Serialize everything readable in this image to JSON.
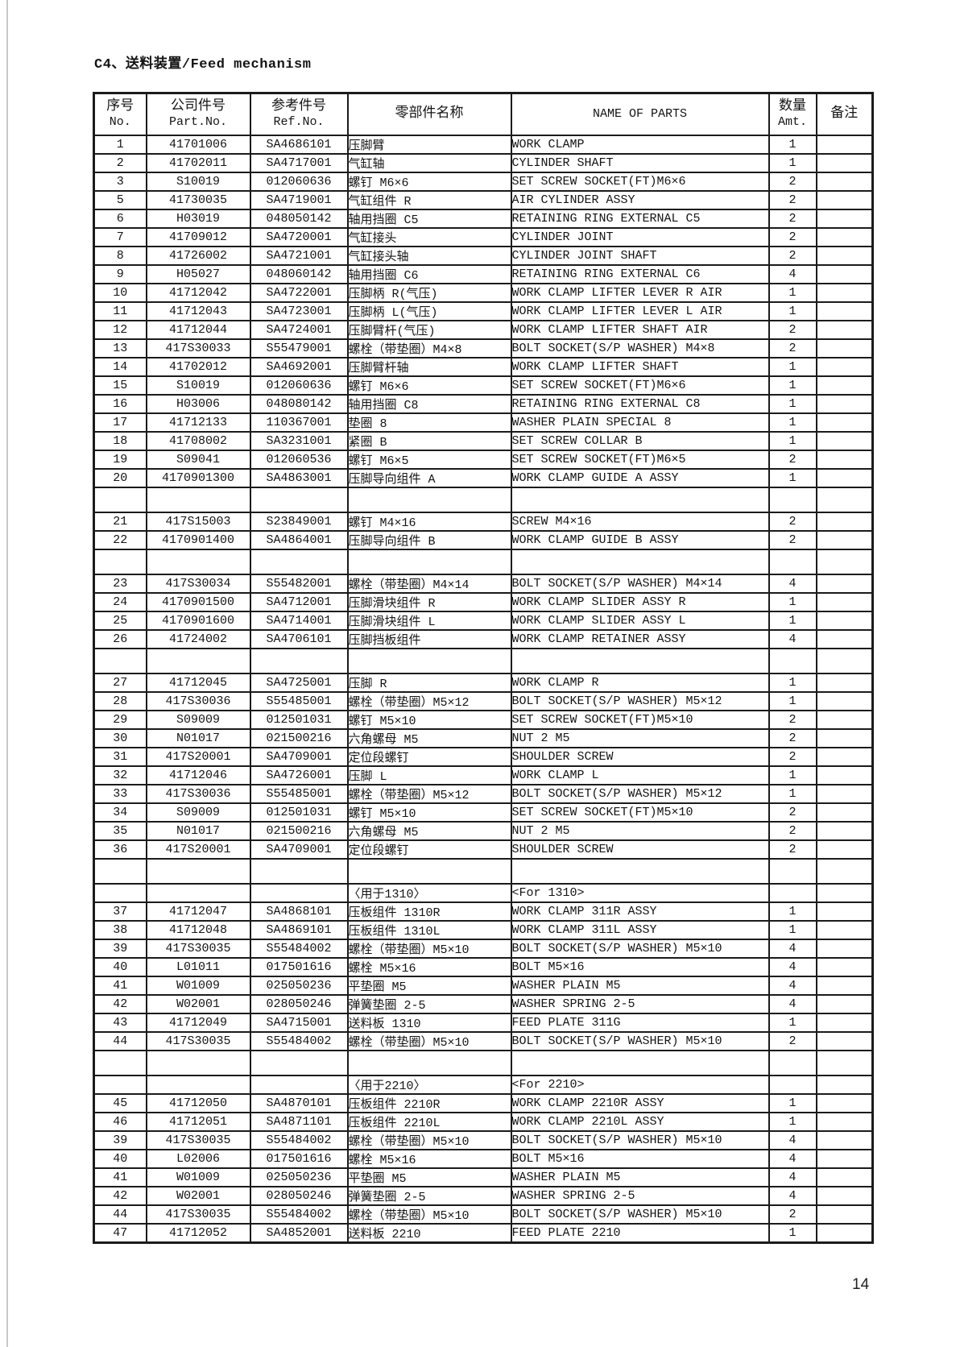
{
  "page": {
    "title": "C4、送料装置/Feed mechanism",
    "page_number": "14"
  },
  "table": {
    "columns": {
      "no": {
        "zh": "序号",
        "en": "No."
      },
      "part_no": {
        "zh": "公司件号",
        "en": "Part.No."
      },
      "ref_no": {
        "zh": "参考件号",
        "en": "Ref.No."
      },
      "name_zh": {
        "zh": "零部件名称"
      },
      "name_en": {
        "en": "NAME OF PARTS"
      },
      "amt": {
        "zh": "数量",
        "en": "Amt."
      },
      "remark": {
        "zh": "备注"
      }
    },
    "rows": [
      {
        "type": "item",
        "no": "1",
        "part": "41701006",
        "ref": "SA4686101",
        "zh": "压脚臂",
        "en": "WORK CLAMP",
        "amt": "1"
      },
      {
        "type": "item",
        "no": "2",
        "part": "41702011",
        "ref": "SA4717001",
        "zh": "气缸轴",
        "en": "CYLINDER SHAFT",
        "amt": "1"
      },
      {
        "type": "item",
        "no": "3",
        "part": "S10019",
        "ref": "012060636",
        "zh": "螺钉 M6×6",
        "en": "SET SCREW SOCKET(FT)M6×6",
        "amt": "2"
      },
      {
        "type": "item",
        "no": "5",
        "part": "41730035",
        "ref": "SA4719001",
        "zh": "气缸组件 R",
        "en": "AIR CYLINDER ASSY",
        "amt": "2"
      },
      {
        "type": "item",
        "no": "6",
        "part": "H03019",
        "ref": "048050142",
        "zh": "轴用挡圈 C5",
        "en": "RETAINING RING EXTERNAL C5",
        "amt": "2"
      },
      {
        "type": "item",
        "no": "7",
        "part": "41709012",
        "ref": "SA4720001",
        "zh": "气缸接头",
        "en": "CYLINDER JOINT",
        "amt": "2"
      },
      {
        "type": "item",
        "no": "8",
        "part": "41726002",
        "ref": "SA4721001",
        "zh": "气缸接头轴",
        "en": "CYLINDER JOINT SHAFT",
        "amt": "2"
      },
      {
        "type": "item",
        "no": "9",
        "part": "H05027",
        "ref": "048060142",
        "zh": "轴用挡圈 C6",
        "en": "RETAINING RING EXTERNAL C6",
        "amt": "4"
      },
      {
        "type": "item",
        "no": "10",
        "part": "41712042",
        "ref": "SA4722001",
        "zh": "压脚柄 R(气压)",
        "en": "WORK CLAMP LIFTER LEVER R AIR",
        "amt": "1"
      },
      {
        "type": "item",
        "no": "11",
        "part": "41712043",
        "ref": "SA4723001",
        "zh": "压脚柄 L(气压)",
        "en": "WORK CLAMP LIFTER LEVER L AIR",
        "amt": "1"
      },
      {
        "type": "item",
        "no": "12",
        "part": "41712044",
        "ref": "SA4724001",
        "zh": "压脚臂杆(气压)",
        "en": "WORK CLAMP LIFTER SHAFT AIR",
        "amt": "2"
      },
      {
        "type": "item",
        "no": "13",
        "part": "417S30033",
        "ref": "S55479001",
        "zh": "螺栓（带垫圈）M4×8",
        "en": "BOLT SOCKET(S/P WASHER) M4×8",
        "amt": "2"
      },
      {
        "type": "item",
        "no": "14",
        "part": "41702012",
        "ref": "SA4692001",
        "zh": "压脚臂杆轴",
        "en": "WORK CLAMP LIFTER SHAFT",
        "amt": "1"
      },
      {
        "type": "item",
        "no": "15",
        "part": "S10019",
        "ref": "012060636",
        "zh": "螺钉 M6×6",
        "en": "SET SCREW SOCKET(FT)M6×6",
        "amt": "1"
      },
      {
        "type": "item",
        "no": "16",
        "part": "H03006",
        "ref": "048080142",
        "zh": "轴用挡圈 C8",
        "en": "RETAINING RING EXTERNAL C8",
        "amt": "1"
      },
      {
        "type": "item",
        "no": "17",
        "part": "41712133",
        "ref": "110367001",
        "zh": "垫圈 8",
        "en": "WASHER PLAIN SPECIAL 8",
        "amt": "1"
      },
      {
        "type": "item",
        "no": "18",
        "part": "41708002",
        "ref": "SA3231001",
        "zh": "紧圈 B",
        "en": "SET SCREW COLLAR B",
        "amt": "1"
      },
      {
        "type": "item",
        "no": "19",
        "part": "S09041",
        "ref": "012060536",
        "zh": "螺钉 M6×5",
        "en": "SET SCREW SOCKET(FT)M6×5",
        "amt": "2"
      },
      {
        "type": "item",
        "no": "20",
        "part": "4170901300",
        "ref": "SA4863001",
        "zh": "压脚导向组件 A",
        "en": "WORK CLAMP GUIDE A ASSY",
        "amt": "1"
      },
      {
        "type": "blank"
      },
      {
        "type": "item",
        "no": "21",
        "part": "417S15003",
        "ref": "S23849001",
        "zh": "螺钉 M4×16",
        "en": "SCREW M4×16",
        "amt": "2"
      },
      {
        "type": "item",
        "no": "22",
        "part": "4170901400",
        "ref": "SA4864001",
        "zh": "压脚导向组件 B",
        "en": "WORK CLAMP GUIDE B ASSY",
        "amt": "2"
      },
      {
        "type": "blank"
      },
      {
        "type": "item",
        "no": "23",
        "part": "417S30034",
        "ref": "S55482001",
        "zh": "螺栓（带垫圈）M4×14",
        "en": "BOLT SOCKET(S/P WASHER) M4×14",
        "amt": "4"
      },
      {
        "type": "item",
        "no": "24",
        "part": "4170901500",
        "ref": "SA4712001",
        "zh": "压脚滑块组件 R",
        "en": "WORK CLAMP SLIDER ASSY R",
        "amt": "1"
      },
      {
        "type": "item",
        "no": "25",
        "part": "4170901600",
        "ref": "SA4714001",
        "zh": "压脚滑块组件 L",
        "en": "WORK CLAMP SLIDER ASSY L",
        "amt": "1"
      },
      {
        "type": "item",
        "no": "26",
        "part": "41724002",
        "ref": "SA4706101",
        "zh": "压脚挡板组件",
        "en": "WORK CLAMP RETAINER ASSY",
        "amt": "4"
      },
      {
        "type": "blank"
      },
      {
        "type": "item",
        "no": "27",
        "part": "41712045",
        "ref": "SA4725001",
        "zh": "压脚 R",
        "en": "WORK CLAMP R",
        "amt": "1"
      },
      {
        "type": "item",
        "no": "28",
        "part": "417S30036",
        "ref": "S55485001",
        "zh": "螺栓（带垫圈）M5×12",
        "en": "BOLT SOCKET(S/P WASHER) M5×12",
        "amt": "1"
      },
      {
        "type": "item",
        "no": "29",
        "part": "S09009",
        "ref": "012501031",
        "zh": "螺钉 M5×10",
        "en": "SET SCREW SOCKET(FT)M5×10",
        "amt": "2"
      },
      {
        "type": "item",
        "no": "30",
        "part": "N01017",
        "ref": "021500216",
        "zh": "六角螺母 M5",
        "en": "NUT 2 M5",
        "amt": "2"
      },
      {
        "type": "item",
        "no": "31",
        "part": "417S20001",
        "ref": "SA4709001",
        "zh": "定位段螺钉",
        "en": "SHOULDER SCREW",
        "amt": "2"
      },
      {
        "type": "item",
        "no": "32",
        "part": "41712046",
        "ref": "SA4726001",
        "zh": "压脚 L",
        "en": "WORK CLAMP L",
        "amt": "1"
      },
      {
        "type": "item",
        "no": "33",
        "part": "417S30036",
        "ref": "S55485001",
        "zh": "螺栓（带垫圈）M5×12",
        "en": "BOLT SOCKET(S/P WASHER) M5×12",
        "amt": "1"
      },
      {
        "type": "item",
        "no": "34",
        "part": "S09009",
        "ref": "012501031",
        "zh": "螺钉 M5×10",
        "en": "SET SCREW SOCKET(FT)M5×10",
        "amt": "2"
      },
      {
        "type": "item",
        "no": "35",
        "part": "N01017",
        "ref": "021500216",
        "zh": "六角螺母 M5",
        "en": "NUT 2 M5",
        "amt": "2"
      },
      {
        "type": "item",
        "no": "36",
        "part": "417S20001",
        "ref": "SA4709001",
        "zh": "定位段螺钉",
        "en": "SHOULDER SCREW",
        "amt": "2"
      },
      {
        "type": "blank"
      },
      {
        "type": "section",
        "zh": "〈用于1310〉",
        "en": "<For 1310>"
      },
      {
        "type": "item",
        "no": "37",
        "part": "41712047",
        "ref": "SA4868101",
        "zh": "压板组件 1310R",
        "en": "WORK CLAMP 311R ASSY",
        "amt": "1"
      },
      {
        "type": "item",
        "no": "38",
        "part": "41712048",
        "ref": "SA4869101",
        "zh": "压板组件 1310L",
        "en": "WORK CLAMP 311L ASSY",
        "amt": "1"
      },
      {
        "type": "item",
        "no": "39",
        "part": "417S30035",
        "ref": "S55484002",
        "zh": "螺栓（带垫圈）M5×10",
        "en": "BOLT SOCKET(S/P WASHER) M5×10",
        "amt": "4"
      },
      {
        "type": "item",
        "no": "40",
        "part": "L01011",
        "ref": "017501616",
        "zh": "螺栓 M5×16",
        "en": "BOLT M5×16",
        "amt": "4"
      },
      {
        "type": "item",
        "no": "41",
        "part": "W01009",
        "ref": "025050236",
        "zh": "平垫圈 M5",
        "en": "WASHER PLAIN M5",
        "amt": "4"
      },
      {
        "type": "item",
        "no": "42",
        "part": "W02001",
        "ref": "028050246",
        "zh": "弹簧垫圈 2-5",
        "en": "WASHER SPRING 2-5",
        "amt": "4"
      },
      {
        "type": "item",
        "no": "43",
        "part": "41712049",
        "ref": "SA4715001",
        "zh": "送料板 1310",
        "en": "FEED PLATE 311G",
        "amt": "1"
      },
      {
        "type": "item",
        "no": "44",
        "part": "417S30035",
        "ref": "S55484002",
        "zh": "螺栓（带垫圈）M5×10",
        "en": "BOLT SOCKET(S/P WASHER) M5×10",
        "amt": "2"
      },
      {
        "type": "blank"
      },
      {
        "type": "section",
        "zh": "〈用于2210〉",
        "en": "<For 2210>"
      },
      {
        "type": "item",
        "no": "45",
        "part": "41712050",
        "ref": "SA4870101",
        "zh": "压板组件 2210R",
        "en": "WORK CLAMP 2210R ASSY",
        "amt": "1"
      },
      {
        "type": "item",
        "no": "46",
        "part": "41712051",
        "ref": "SA4871101",
        "zh": "压板组件 2210L",
        "en": "WORK CLAMP 2210L ASSY",
        "amt": "1"
      },
      {
        "type": "item",
        "no": "39",
        "part": "417S30035",
        "ref": "S55484002",
        "zh": "螺栓（带垫圈）M5×10",
        "en": "BOLT SOCKET(S/P WASHER) M5×10",
        "amt": "4"
      },
      {
        "type": "item",
        "no": "40",
        "part": "L02006",
        "ref": "017501616",
        "zh": "螺栓 M5×16",
        "en": "BOLT M5×16",
        "amt": "4"
      },
      {
        "type": "item",
        "no": "41",
        "part": "W01009",
        "ref": "025050236",
        "zh": "平垫圈 M5",
        "en": "WASHER PLAIN M5",
        "amt": "4"
      },
      {
        "type": "item",
        "no": "42",
        "part": "W02001",
        "ref": "028050246",
        "zh": "弹簧垫圈 2-5",
        "en": "WASHER SPRING 2-5",
        "amt": "4"
      },
      {
        "type": "item",
        "no": "44",
        "part": "417S30035",
        "ref": "S55484002",
        "zh": "螺栓（带垫圈）M5×10",
        "en": "BOLT SOCKET(S/P WASHER) M5×10",
        "amt": "2"
      },
      {
        "type": "item",
        "no": "47",
        "part": "41712052",
        "ref": "SA4852001",
        "zh": "送料板 2210",
        "en": "FEED PLATE 2210",
        "amt": "1"
      }
    ]
  }
}
